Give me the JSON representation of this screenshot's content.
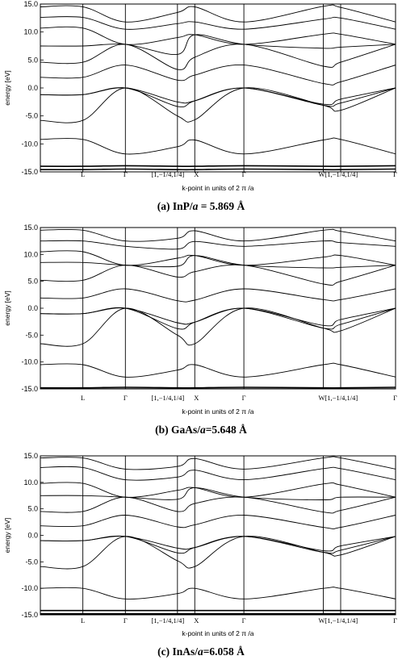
{
  "chart_data": [
    {
      "type": "line",
      "caption": {
        "letter": "(a)",
        "material": "InP/",
        "a": "a",
        "value": " = 5.869 Å"
      },
      "ylabel": "energy [eV]",
      "xlabel": "k-point in units of 2 π /a",
      "ylim": [
        -15,
        15
      ],
      "yticks": [
        15,
        10,
        5,
        0,
        -5,
        -10,
        -15
      ],
      "ytick_labels": [
        "15.0",
        "10.0",
        "5.0",
        "0.0",
        "-5.0",
        "-10.0",
        "-15.0"
      ],
      "kpath": [
        {
          "label": "",
          "k": 0.0
        },
        {
          "label": "L",
          "k": 0.866
        },
        {
          "label": "Γ",
          "k": 1.732
        },
        {
          "label": "[1,−1/4,1/4]",
          "k": 2.793
        },
        {
          "label": "X",
          "k": 3.146
        },
        {
          "label": "Γ",
          "k": 4.146
        },
        {
          "label": "W[1,−1/4,1/4]",
          "k": 5.764
        },
        {
          "label": "",
          "k": 6.118
        },
        {
          "label": "Γ",
          "k": 7.236
        }
      ],
      "special_energies": {
        "L": [
          -14.6,
          -14.0,
          -9.2,
          -5.8,
          -1.2,
          -1.2,
          1.9,
          4.6,
          7.5,
          10.7,
          12.6,
          14.5
        ],
        "G1": [
          -14.5,
          -13.9,
          -11.8,
          0.0,
          0.0,
          0.0,
          4.1,
          7.8,
          7.8,
          7.8,
          10.5,
          11.8
        ],
        "D": [
          -14.6,
          -14.0,
          -10.5,
          -5.0,
          -3.3,
          -2.5,
          1.4,
          3.3,
          6.0,
          9.0,
          11.5,
          13.5
        ],
        "X": [
          -14.6,
          -14.0,
          -9.3,
          -5.7,
          -2.3,
          -2.3,
          2.3,
          5.5,
          9.5,
          9.5,
          11.8,
          14.5
        ],
        "G2": [
          -14.5,
          -13.9,
          -11.8,
          0.0,
          0.0,
          0.0,
          4.1,
          7.8,
          7.8,
          7.8,
          10.5,
          11.8
        ],
        "W": [
          -14.6,
          -14.0,
          -9.3,
          -3.1,
          -3.1,
          -2.9,
          0.8,
          3.9,
          7.1,
          9.6,
          12.3,
          14.6
        ],
        "W2": [
          -14.6,
          -14.0,
          -9.2,
          -4.0,
          -2.7,
          -2.0,
          1.1,
          4.6,
          7.3,
          9.6,
          12.5,
          14.4
        ],
        "G3": [
          -14.5,
          -13.9,
          -11.8,
          0.0,
          0.0,
          0.0,
          4.1,
          7.8,
          7.8,
          7.8,
          10.5,
          11.8
        ]
      }
    },
    {
      "type": "line",
      "caption": {
        "letter": "(b)",
        "material": "GaAs/",
        "a": "a",
        "value": "=5.648 Å"
      },
      "ylabel": "energy [eV]",
      "xlabel": "k-point in units of 2 π /a",
      "ylim": [
        -15,
        15
      ],
      "yticks": [
        15,
        10,
        5,
        0,
        -5,
        -10,
        -15
      ],
      "ytick_labels": [
        "15.0",
        "10.0",
        "5.0",
        "0.0",
        "-5.0",
        "-10.0",
        "-15.0"
      ],
      "kpath": [
        {
          "label": "",
          "k": 0.0
        },
        {
          "label": "L",
          "k": 0.866
        },
        {
          "label": "Γ",
          "k": 1.732
        },
        {
          "label": "[1,−1/4,1/4]",
          "k": 2.793
        },
        {
          "label": "X",
          "k": 3.146
        },
        {
          "label": "Γ",
          "k": 4.146
        },
        {
          "label": "W[1,−1/4,1/4]",
          "k": 5.764
        },
        {
          "label": "",
          "k": 6.118
        },
        {
          "label": "Γ",
          "k": 7.236
        }
      ],
      "special_energies": {
        "L": [
          -15.0,
          -14.8,
          -10.5,
          -6.6,
          -1.0,
          -1.0,
          1.9,
          5.2,
          8.5,
          10.5,
          12.5,
          14.5
        ],
        "G1": [
          -15.0,
          -14.7,
          -12.8,
          0.0,
          0.0,
          0.0,
          3.6,
          8.0,
          8.0,
          8.0,
          11.5,
          12.5
        ],
        "D": [
          -15.0,
          -14.8,
          -11.5,
          -5.0,
          -3.8,
          -2.7,
          1.4,
          5.8,
          7.8,
          9.3,
          11.0,
          13.0
        ],
        "X": [
          -15.0,
          -14.8,
          -10.5,
          -6.6,
          -2.6,
          -2.6,
          1.5,
          6.8,
          9.8,
          9.8,
          12.4,
          14.4
        ],
        "G2": [
          -15.0,
          -14.7,
          -12.8,
          0.0,
          0.0,
          0.0,
          3.6,
          8.0,
          8.0,
          8.0,
          11.5,
          12.5
        ],
        "W": [
          -15.0,
          -14.8,
          -10.5,
          -3.7,
          -3.7,
          -3.2,
          1.6,
          4.5,
          7.5,
          9.5,
          12.5,
          14.5
        ],
        "W2": [
          -15.0,
          -14.8,
          -10.5,
          -4.2,
          -3.0,
          -2.1,
          1.6,
          5.0,
          7.6,
          9.8,
          12.2,
          14.3
        ],
        "G3": [
          -15.0,
          -14.7,
          -12.8,
          0.0,
          0.0,
          0.0,
          3.6,
          8.0,
          8.0,
          8.0,
          11.5,
          12.5
        ]
      }
    },
    {
      "type": "line",
      "caption": {
        "letter": "(c)",
        "material": "InAs/",
        "a": "a",
        "value": "=6.058 Å"
      },
      "ylabel": "energy [eV]",
      "xlabel": "k-point in units of 2 π /a",
      "ylim": [
        -15,
        15
      ],
      "yticks": [
        15,
        10,
        5,
        0,
        -5,
        -10,
        -15
      ],
      "ytick_labels": [
        "15.0",
        "10.0",
        "5.0",
        "0.0",
        "-5.0",
        "-10.0",
        "-15.0"
      ],
      "kpath": [
        {
          "label": "",
          "k": 0.0
        },
        {
          "label": "L",
          "k": 0.866
        },
        {
          "label": "Γ",
          "k": 1.732
        },
        {
          "label": "[1,−1/4,1/4]",
          "k": 2.793
        },
        {
          "label": "X",
          "k": 3.146
        },
        {
          "label": "Γ",
          "k": 4.146
        },
        {
          "label": "W[1,−1/4,1/4]",
          "k": 5.764
        },
        {
          "label": "",
          "k": 6.118
        },
        {
          "label": "Γ",
          "k": 7.236
        }
      ],
      "special_energies": {
        "L": [
          -14.8,
          -14.2,
          -10.0,
          -5.9,
          -1.0,
          -1.0,
          1.8,
          4.5,
          7.5,
          9.8,
          12.8,
          14.6
        ],
        "G1": [
          -14.8,
          -14.2,
          -12.0,
          -0.2,
          -0.2,
          -0.2,
          3.8,
          7.2,
          7.2,
          7.2,
          10.5,
          12.5
        ],
        "D": [
          -14.8,
          -14.2,
          -11.0,
          -4.8,
          -3.3,
          -2.4,
          1.6,
          4.5,
          6.8,
          8.5,
          11.0,
          13.0
        ],
        "X": [
          -14.8,
          -14.2,
          -10.0,
          -5.9,
          -2.3,
          -2.3,
          2.0,
          6.0,
          9.0,
          9.0,
          12.3,
          14.5
        ],
        "G2": [
          -14.8,
          -14.2,
          -12.0,
          -0.2,
          -0.2,
          -0.2,
          3.8,
          7.2,
          7.2,
          7.2,
          10.5,
          12.5
        ],
        "W": [
          -14.8,
          -14.2,
          -10.0,
          -3.2,
          -3.2,
          -2.9,
          1.5,
          4.4,
          6.7,
          9.7,
          12.6,
          14.6
        ],
        "W2": [
          -14.8,
          -14.2,
          -10.0,
          -3.7,
          -2.8,
          -2.0,
          1.5,
          4.7,
          7.2,
          9.5,
          12.6,
          14.6
        ],
        "G3": [
          -14.8,
          -14.2,
          -12.0,
          -0.2,
          -0.2,
          -0.2,
          3.8,
          7.2,
          7.2,
          7.2,
          10.5,
          12.5
        ]
      }
    }
  ]
}
